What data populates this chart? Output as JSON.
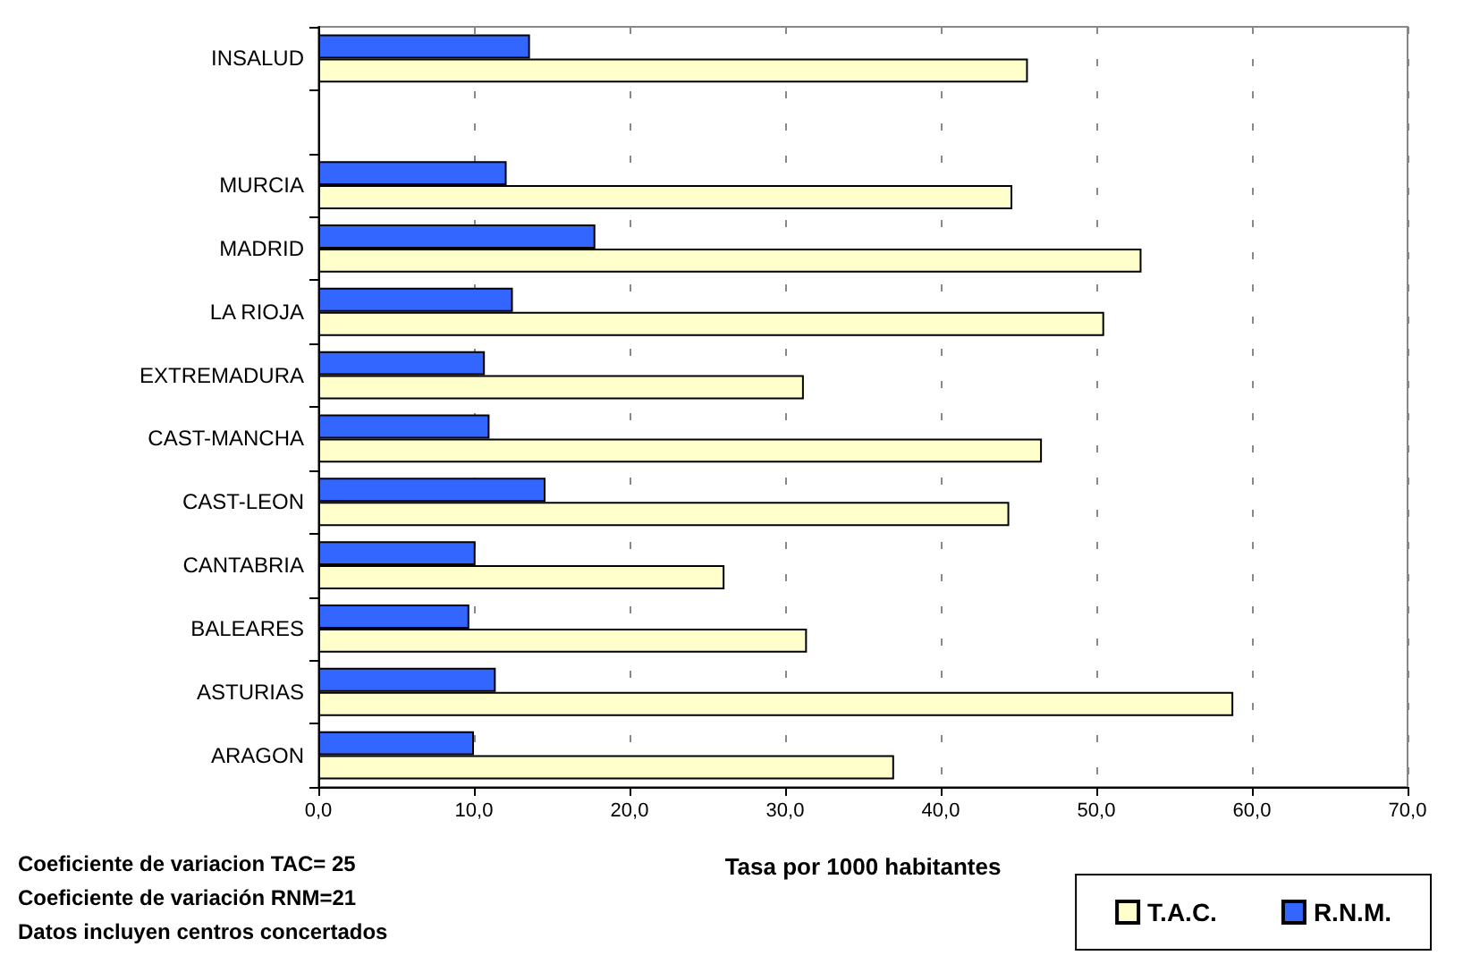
{
  "chart_data": {
    "type": "bar",
    "orientation": "horizontal",
    "xlabel": "Tasa por 1000 habitantes",
    "categories": [
      "INSALUD",
      null,
      "MURCIA",
      "MADRID",
      "LA RIOJA",
      "EXTREMADURA",
      "CAST-MANCHA",
      "CAST-LEON",
      "CANTABRIA",
      "BALEARES",
      "ASTURIAS",
      "ARAGON"
    ],
    "series": [
      {
        "name": "T.A.C.",
        "color": "#ffffcc",
        "values": [
          45.6,
          null,
          44.6,
          52.9,
          50.5,
          31.2,
          46.5,
          44.4,
          26.1,
          31.4,
          58.8,
          37.0
        ]
      },
      {
        "name": "R.N.M.",
        "color": "#3366ff",
        "values": [
          13.6,
          null,
          12.1,
          17.8,
          12.5,
          10.7,
          11.0,
          14.6,
          10.1,
          9.7,
          11.4,
          10.0
        ]
      }
    ],
    "xlim": [
      0,
      70
    ],
    "xticks": [
      {
        "value": 0,
        "label": "0,0"
      },
      {
        "value": 10,
        "label": "10,0"
      },
      {
        "value": 20,
        "label": "20,0"
      },
      {
        "value": 30,
        "label": "30,0"
      },
      {
        "value": 40,
        "label": "40,0"
      },
      {
        "value": 50,
        "label": "50,0"
      },
      {
        "value": 60,
        "label": "60,0"
      },
      {
        "value": 70,
        "label": "70,0"
      }
    ],
    "grid": "x",
    "legend": "bottom right",
    "annotations": [
      "Coeficiente de variacion TAC= 25",
      "Coeficiente de variación RNM=21",
      "Datos incluyen centros concertados"
    ]
  }
}
